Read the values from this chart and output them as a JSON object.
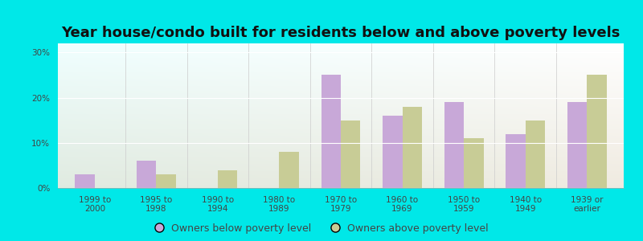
{
  "title": "Year house/condo built for residents below and above poverty levels",
  "categories": [
    "1999 to\n2000",
    "1995 to\n1998",
    "1990 to\n1994",
    "1980 to\n1989",
    "1970 to\n1979",
    "1960 to\n1969",
    "1950 to\n1959",
    "1940 to\n1949",
    "1939 or\nearlier"
  ],
  "below_poverty": [
    3.0,
    6.0,
    0.0,
    0.0,
    25.0,
    16.0,
    19.0,
    12.0,
    19.0
  ],
  "above_poverty": [
    0.0,
    3.0,
    4.0,
    8.0,
    15.0,
    18.0,
    11.0,
    15.0,
    25.0
  ],
  "below_color": "#c8a8d8",
  "above_color": "#c8cc96",
  "outer_bg": "#00e8e8",
  "ylim": [
    0,
    32
  ],
  "yticks": [
    0,
    10,
    20,
    30
  ],
  "ytick_labels": [
    "0%",
    "10%",
    "20%",
    "30%"
  ],
  "legend_below": "Owners below poverty level",
  "legend_above": "Owners above poverty level",
  "title_fontsize": 13,
  "tick_fontsize": 7.5,
  "legend_fontsize": 9
}
